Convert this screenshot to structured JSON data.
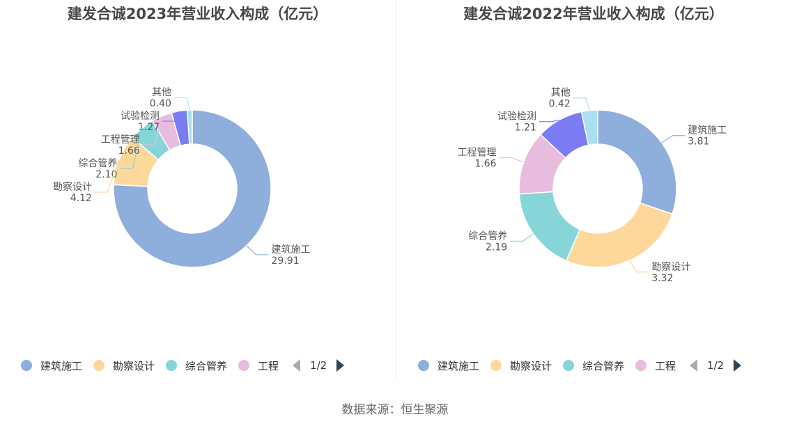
{
  "source_note": "数据来源：恒生聚源",
  "colors": {
    "建筑施工": "#8eaedc",
    "勘察设计": "#fdd89a",
    "综合管养": "#86d5d9",
    "工程管理": "#e8bcdd",
    "试验检测": "#7b7cf2",
    "其他": "#a9e0f5"
  },
  "chart_data": [
    {
      "type": "pie",
      "title": "建发合诚2023年营业收入构成（亿元）",
      "slices": [
        {
          "label": "建筑施工",
          "value": 29.91,
          "display": "29.91"
        },
        {
          "label": "勘察设计",
          "value": 4.12,
          "display": "4.12"
        },
        {
          "label": "综合管养",
          "value": 2.1,
          "display": "2.10"
        },
        {
          "label": "工程管理",
          "value": 1.66,
          "display": "1.66"
        },
        {
          "label": "试验检测",
          "value": 1.27,
          "display": "1.27"
        },
        {
          "label": "其他",
          "value": 0.4,
          "display": "0.40"
        }
      ],
      "legend": {
        "items": [
          "建筑施工",
          "勘察设计",
          "综合管养",
          "工程"
        ],
        "page": "1/2",
        "placement": "bottom"
      }
    },
    {
      "type": "pie",
      "title": "建发合诚2022年营业收入构成（亿元）",
      "slices": [
        {
          "label": "建筑施工",
          "value": 3.81,
          "display": "3.81"
        },
        {
          "label": "勘察设计",
          "value": 3.32,
          "display": "3.32"
        },
        {
          "label": "综合管养",
          "value": 2.19,
          "display": "2.19"
        },
        {
          "label": "工程管理",
          "value": 1.66,
          "display": "1.66"
        },
        {
          "label": "试验检测",
          "value": 1.21,
          "display": "1.21"
        },
        {
          "label": "其他",
          "value": 0.42,
          "display": "0.42"
        }
      ],
      "legend": {
        "items": [
          "建筑施工",
          "勘察设计",
          "综合管养",
          "工程"
        ],
        "page": "1/2",
        "placement": "bottom"
      }
    }
  ]
}
